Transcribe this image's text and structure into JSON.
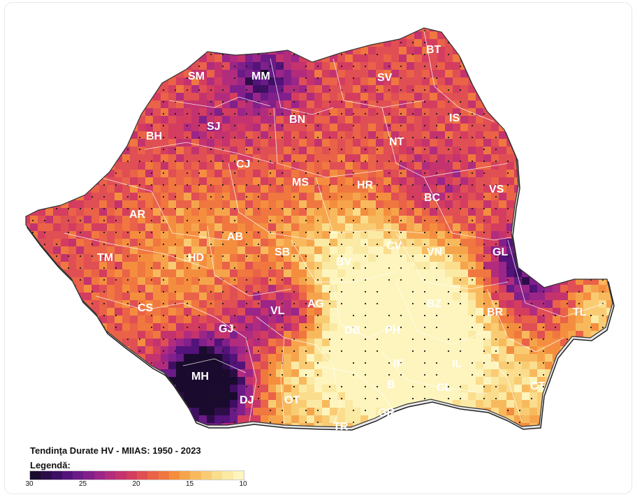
{
  "map": {
    "title": "Tendința Durate HV - MIIAS: 1950 - 2023",
    "legend_label": "Legendă:",
    "scale_min": 30,
    "scale_max": 10,
    "legend_ticks": [
      "30",
      "25",
      "20",
      "15",
      "10"
    ],
    "palette": [
      "#1a0b2e",
      "#2d0d49",
      "#3e0f63",
      "#53137a",
      "#6a1b86",
      "#82208b",
      "#9b2588",
      "#b22c7d",
      "#c4336e",
      "#d43d60",
      "#e04f54",
      "#ea6248",
      "#f0773f",
      "#f48e3e",
      "#f6a44b",
      "#f8b95d",
      "#f9cc74",
      "#fadd8d",
      "#fbeaa4",
      "#fdf5bd"
    ],
    "counties": [
      {
        "code": "SM"
      },
      {
        "code": "MM"
      },
      {
        "code": "BT"
      },
      {
        "code": "SV"
      },
      {
        "code": "SJ"
      },
      {
        "code": "BN"
      },
      {
        "code": "IS"
      },
      {
        "code": "BH"
      },
      {
        "code": "NT"
      },
      {
        "code": "CJ"
      },
      {
        "code": "MS"
      },
      {
        "code": "HR"
      },
      {
        "code": "VS"
      },
      {
        "code": "BC"
      },
      {
        "code": "AR"
      },
      {
        "code": "AB"
      },
      {
        "code": "CV"
      },
      {
        "code": "VN"
      },
      {
        "code": "GL"
      },
      {
        "code": "TM"
      },
      {
        "code": "HD"
      },
      {
        "code": "SB"
      },
      {
        "code": "BV"
      },
      {
        "code": "CS"
      },
      {
        "code": "VL"
      },
      {
        "code": "AG"
      },
      {
        "code": "BZ"
      },
      {
        "code": "BR"
      },
      {
        "code": "TL"
      },
      {
        "code": "GJ"
      },
      {
        "code": "DB"
      },
      {
        "code": "PH"
      },
      {
        "code": "IF"
      },
      {
        "code": "IL"
      },
      {
        "code": "MH"
      },
      {
        "code": "B"
      },
      {
        "code": "CL"
      },
      {
        "code": "CT"
      },
      {
        "code": "DJ"
      },
      {
        "code": "OT"
      },
      {
        "code": "GR"
      },
      {
        "code": "TR"
      }
    ]
  }
}
